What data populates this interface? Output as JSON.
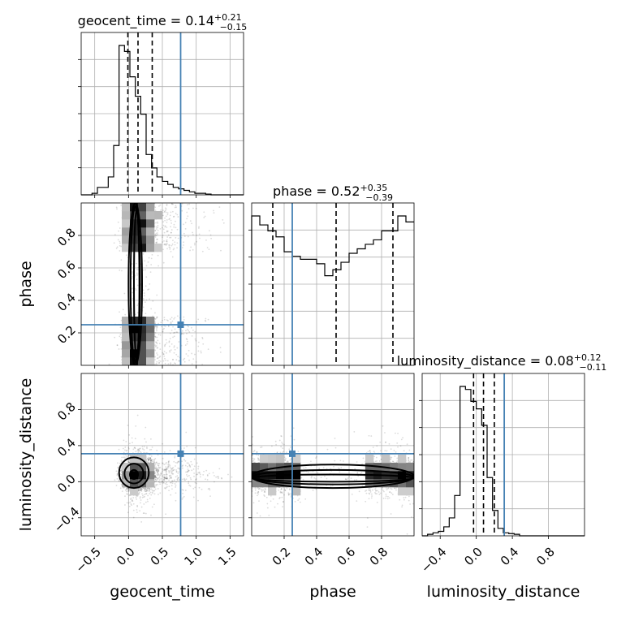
{
  "chart_data": {
    "type": "corner",
    "parameters": [
      "geocent_time",
      "phase",
      "luminosity_distance"
    ],
    "truths": [
      0.77,
      0.25,
      0.31
    ],
    "truth_color": "#4682b4",
    "ranges": [
      [
        -0.7,
        1.7
      ],
      [
        0.0,
        1.0
      ],
      [
        -0.6,
        1.2
      ]
    ],
    "ticks": [
      [
        -0.5,
        0.0,
        0.5,
        1.0,
        1.5
      ],
      [
        0.2,
        0.4,
        0.6,
        0.8
      ],
      [
        -0.4,
        0.0,
        0.4,
        0.8
      ]
    ],
    "tick_labels": [
      [
        "−0.5",
        "0.0",
        "0.5",
        "1.0",
        "1.5"
      ],
      [
        "0.2",
        "0.4",
        "0.6",
        "0.8"
      ],
      [
        "−0.4",
        "0.0",
        "0.4",
        "0.8"
      ]
    ],
    "titles": [
      {
        "param": "geocent_time",
        "median": "0.14",
        "plus": "+0.21",
        "minus": "−0.15"
      },
      {
        "param": "phase",
        "median": "0.52",
        "plus": "+0.35",
        "minus": "−0.39"
      },
      {
        "param": "luminosity_distance",
        "median": "0.08",
        "plus": "+0.12",
        "minus": "−0.11"
      }
    ],
    "quantiles": [
      [
        -0.01,
        0.14,
        0.35
      ],
      [
        0.13,
        0.52,
        0.87
      ],
      [
        -0.03,
        0.08,
        0.2
      ]
    ],
    "marginals": [
      {
        "edges_start": -0.7,
        "bin_width": 0.08,
        "counts": [
          0,
          0,
          0.01,
          0.05,
          0.05,
          0.12,
          0.33,
          1.0,
          0.96,
          0.79,
          0.66,
          0.54,
          0.27,
          0.18,
          0.12,
          0.09,
          0.07,
          0.05,
          0.04,
          0.03,
          0.02,
          0.01,
          0.01,
          0.005,
          0,
          0,
          0,
          0,
          0,
          0
        ]
      },
      {
        "edges_start": 0.0,
        "bin_width": 0.05,
        "counts": [
          1.0,
          0.94,
          0.9,
          0.86,
          0.76,
          0.73,
          0.71,
          0.71,
          0.68,
          0.6,
          0.64,
          0.69,
          0.75,
          0.78,
          0.81,
          0.84,
          0.9,
          0.9,
          1.0,
          0.96
        ]
      },
      {
        "edges_start": -0.6,
        "bin_width": 0.06,
        "counts": [
          0,
          0.01,
          0.02,
          0.03,
          0.06,
          0.12,
          0.27,
          1.0,
          0.98,
          0.9,
          0.85,
          0.74,
          0.39,
          0.17,
          0.05,
          0.02,
          0.015,
          0.01,
          0,
          0,
          0,
          0,
          0,
          0,
          0,
          0,
          0,
          0,
          0,
          0
        ]
      }
    ],
    "grid": true
  }
}
